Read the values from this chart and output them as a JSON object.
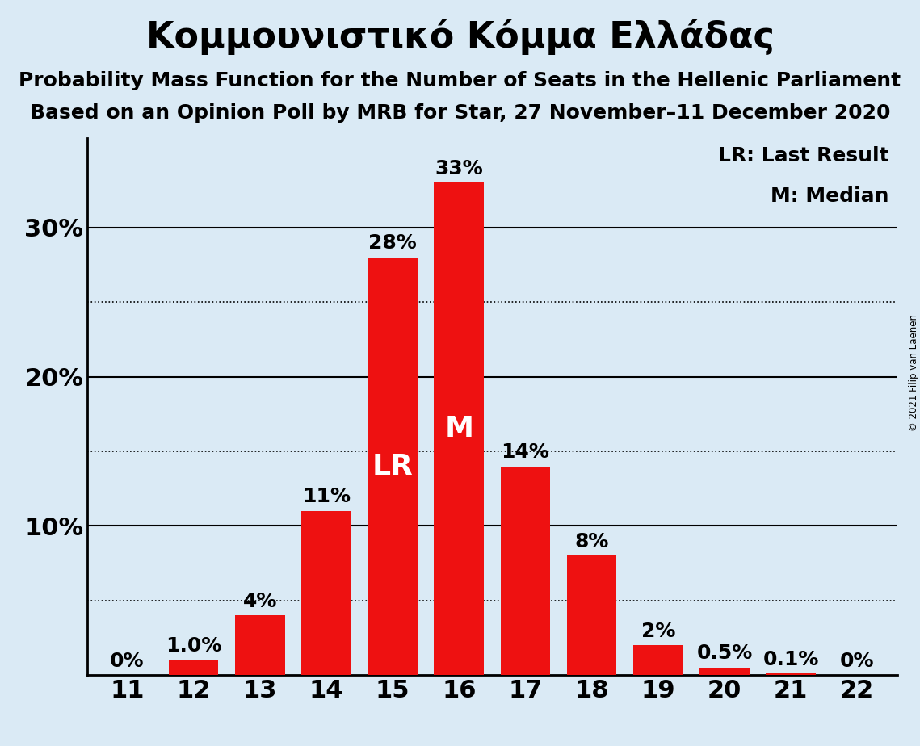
{
  "title": "Κομμουνιστικό Κόμμα Ελλάδας",
  "subtitle1": "Probability Mass Function for the Number of Seats in the Hellenic Parliament",
  "subtitle2": "Based on an Opinion Poll by MRB for Star, 27 November–11 December 2020",
  "copyright": "© 2021 Filip van Laenen",
  "categories": [
    11,
    12,
    13,
    14,
    15,
    16,
    17,
    18,
    19,
    20,
    21,
    22
  ],
  "values": [
    0.0,
    1.0,
    4.0,
    11.0,
    28.0,
    33.0,
    14.0,
    8.0,
    2.0,
    0.5,
    0.1,
    0.0
  ],
  "bar_labels": [
    "0%",
    "1.0%",
    "4%",
    "11%",
    "28%",
    "33%",
    "14%",
    "8%",
    "2%",
    "0.5%",
    "0.1%",
    "0%"
  ],
  "bar_color": "#ee1111",
  "background_color": "#daeaf5",
  "yticks": [
    0,
    10,
    20,
    30
  ],
  "ytick_labels": [
    "",
    "10%",
    "20%",
    "30%"
  ],
  "dotted_gridlines": [
    5,
    15,
    25
  ],
  "solid_gridlines": [
    10,
    20,
    30
  ],
  "ylim": [
    0,
    36
  ],
  "lr_index": 4,
  "median_index": 5,
  "lr_label": "LR",
  "median_label": "M",
  "legend_lr": "LR: Last Result",
  "legend_m": "M: Median",
  "title_fontsize": 32,
  "subtitle_fontsize": 18,
  "bar_label_fontsize": 18,
  "axis_label_fontsize": 22,
  "legend_fontsize": 18,
  "inbar_fontsize": 26
}
